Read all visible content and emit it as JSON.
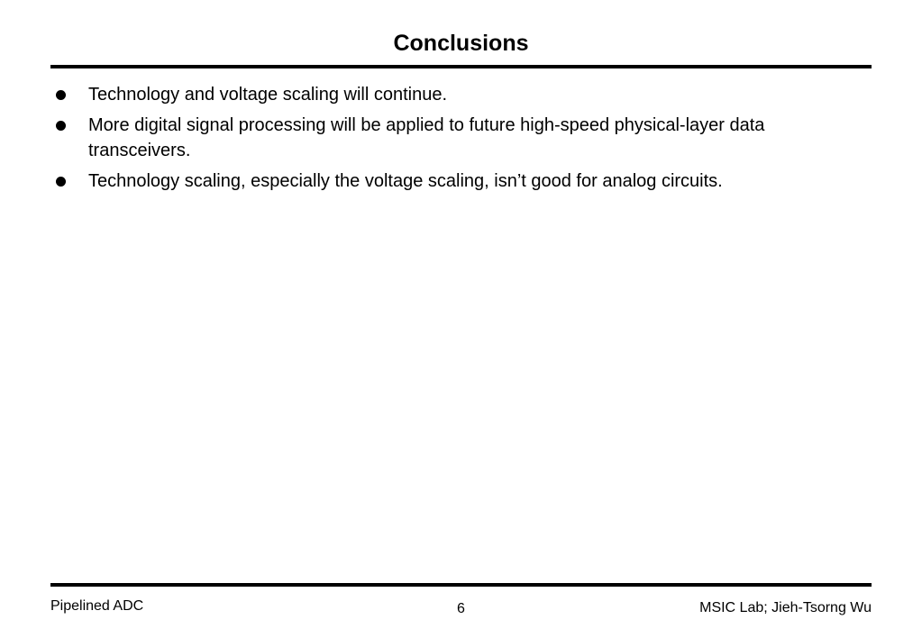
{
  "slide": {
    "title": "Conclusions",
    "bullets": [
      "Technology and voltage scaling will continue.",
      "More digital signal processing will be applied to future high-speed physical-layer data transceivers.",
      "Technology scaling, especially the voltage scaling, isn’t good for analog circuits."
    ]
  },
  "footer": {
    "left": "Pipelined ADC",
    "page_number": "6",
    "right": "MSIC Lab; Jieh-Tsorng Wu"
  }
}
